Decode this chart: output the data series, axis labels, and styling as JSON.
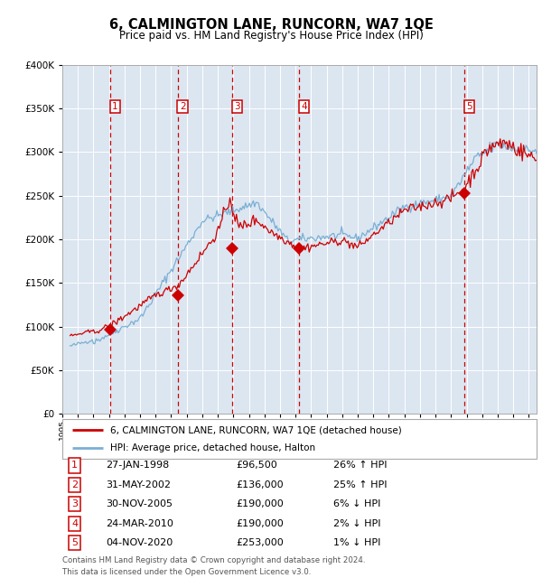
{
  "title": "6, CALMINGTON LANE, RUNCORN, WA7 1QE",
  "subtitle": "Price paid vs. HM Land Registry's House Price Index (HPI)",
  "background_color": "#dce6f1",
  "grid_color": "#ffffff",
  "ylim": [
    0,
    400000
  ],
  "yticks": [
    0,
    50000,
    100000,
    150000,
    200000,
    250000,
    300000,
    350000,
    400000
  ],
  "sale_dates_decimal": [
    1998.07,
    2002.42,
    2005.92,
    2010.23,
    2020.84
  ],
  "sale_prices": [
    96500,
    136000,
    190000,
    190000,
    253000
  ],
  "sale_labels": [
    "1",
    "2",
    "3",
    "4",
    "5"
  ],
  "hpi_line_color": "#7aafd4",
  "price_line_color": "#cc0000",
  "sale_marker_color": "#cc0000",
  "vline_color": "#cc0000",
  "legend_line1": "6, CALMINGTON LANE, RUNCORN, WA7 1QE (detached house)",
  "legend_line2": "HPI: Average price, detached house, Halton",
  "table_rows": [
    [
      "1",
      "27-JAN-1998",
      "£96,500",
      "26% ↑ HPI"
    ],
    [
      "2",
      "31-MAY-2002",
      "£136,000",
      "25% ↑ HPI"
    ],
    [
      "3",
      "30-NOV-2005",
      "£190,000",
      "6% ↓ HPI"
    ],
    [
      "4",
      "24-MAR-2010",
      "£190,000",
      "2% ↓ HPI"
    ],
    [
      "5",
      "04-NOV-2020",
      "£253,000",
      "1% ↓ HPI"
    ]
  ],
  "footnote1": "Contains HM Land Registry data © Crown copyright and database right 2024.",
  "footnote2": "This data is licensed under the Open Government Licence v3.0.",
  "x_start": 1995.5,
  "x_end": 2025.5,
  "xtick_start": 1995,
  "xtick_end": 2025
}
